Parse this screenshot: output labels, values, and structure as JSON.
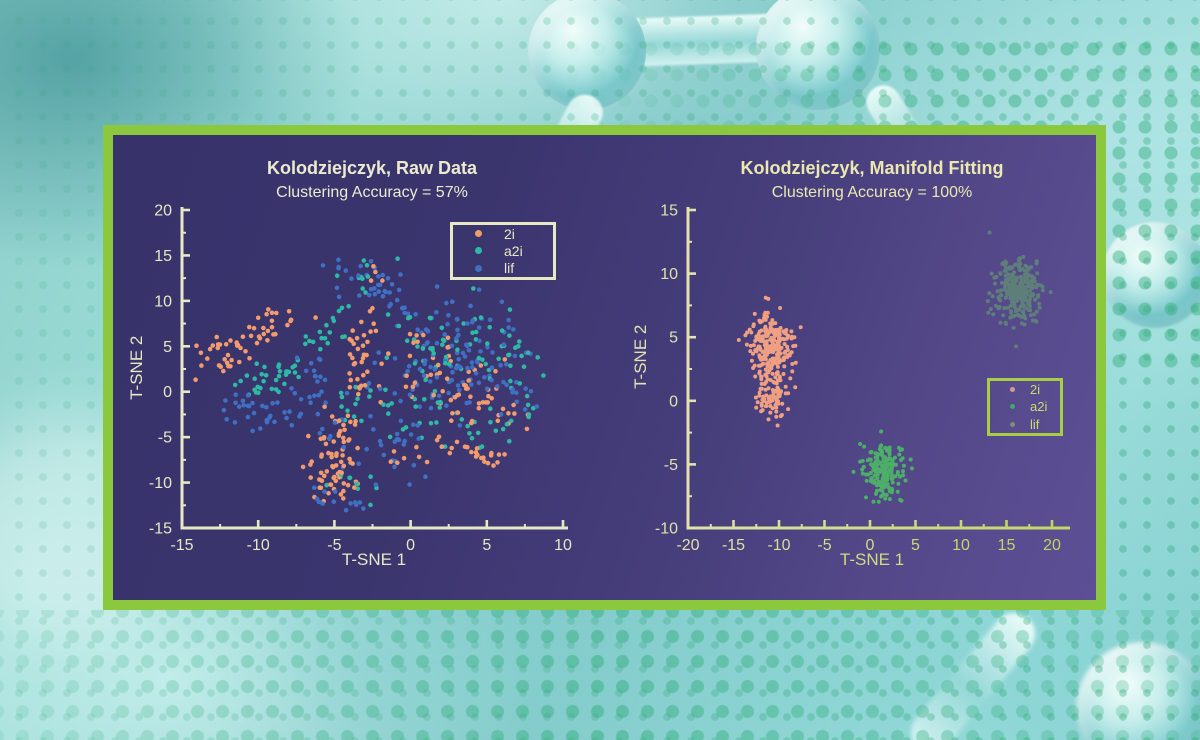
{
  "figure": {
    "frame_color": "#8cc83e",
    "panel_bg_left": "#37326a",
    "panel_bg_right": "#5d4f95",
    "background_theme_color": "#8ad1cf",
    "dot_pattern_color": "#2fa576"
  },
  "chart_data": [
    {
      "type": "scatter",
      "title": "Kolodziejczyk, Raw Data",
      "subtitle": "Clustering Accuracy = 57%",
      "accuracy_value": "57%",
      "xlabel": "T-SNE 1",
      "ylabel": "T-SNE 2",
      "xlim": [
        -15,
        10
      ],
      "ylim": [
        -15,
        20
      ],
      "xticks": [
        -15,
        -10,
        -5,
        0,
        5,
        10
      ],
      "yticks": [
        -15,
        -10,
        -5,
        0,
        5,
        10,
        15,
        20
      ],
      "grid": false,
      "title_color": "#ecebd0",
      "axis_color": "#e7e8c4",
      "tick_label_color_start": "#e7e8c4",
      "tick_label_color_end": "#e7e8c4",
      "xlabel_color": "#e7e8c4",
      "ylabel_color": "#e7e8c4",
      "marker_radius": 2.3,
      "legend": {
        "position": "top-right",
        "border_color": "#e7e8c4",
        "text_color": "#e7e8c4",
        "items": [
          {
            "label": "2i",
            "color": "#f29b6d"
          },
          {
            "label": "a2i",
            "color": "#2eb9a5"
          },
          {
            "label": "lif",
            "color": "#4070c3"
          }
        ]
      },
      "series": [
        {
          "name": "2i",
          "color": "#f29b6d",
          "blobs": [
            [
              -12.2,
              4.0,
              0.9,
              1.2,
              30
            ],
            [
              -9.8,
              6.3,
              0.6,
              0.8,
              12
            ],
            [
              -8.5,
              8.2,
              0.7,
              0.8,
              12
            ],
            [
              -3.3,
              4.3,
              0.45,
              2.6,
              30
            ],
            [
              -4.8,
              -4.5,
              0.7,
              1.3,
              22
            ],
            [
              -5.2,
              -7.5,
              0.8,
              1.5,
              30
            ],
            [
              -4.6,
              -10.3,
              0.7,
              1.2,
              22
            ],
            [
              1.5,
              2.0,
              2.2,
              2.2,
              30
            ],
            [
              4.0,
              0.0,
              1.8,
              1.8,
              22
            ],
            [
              2.0,
              -6.5,
              1.8,
              1.0,
              18
            ],
            [
              5.5,
              -6.8,
              1.3,
              0.6,
              12
            ],
            [
              6.3,
              -2.5,
              0.9,
              1.3,
              10
            ],
            [
              0.0,
              6.5,
              1.5,
              1.2,
              10
            ],
            [
              -2.2,
              13.2,
              0.8,
              0.8,
              4
            ]
          ]
        },
        {
          "name": "a2i",
          "color": "#2eb9a5",
          "blobs": [
            [
              -9.8,
              0.8,
              1.0,
              0.9,
              16
            ],
            [
              -8.2,
              2.6,
              0.9,
              0.9,
              16
            ],
            [
              -6.0,
              5.5,
              0.7,
              1.2,
              10
            ],
            [
              -4.9,
              7.8,
              0.5,
              1.0,
              8
            ],
            [
              -2.9,
              12.9,
              1.1,
              0.9,
              10
            ],
            [
              -3.6,
              -0.5,
              0.7,
              1.6,
              10
            ],
            [
              -3.2,
              -9.8,
              1.2,
              1.2,
              10
            ],
            [
              1.8,
              3.8,
              2.4,
              2.2,
              40
            ],
            [
              0.5,
              -2.8,
              2.0,
              1.4,
              24
            ],
            [
              4.8,
              -4.0,
              1.5,
              1.0,
              14
            ],
            [
              7.3,
              0.8,
              0.6,
              1.8,
              12
            ],
            [
              4.2,
              7.0,
              1.5,
              1.3,
              14
            ],
            [
              6.8,
              4.0,
              0.8,
              1.0,
              8
            ]
          ]
        },
        {
          "name": "lif",
          "color": "#4070c3",
          "blobs": [
            [
              -9.7,
              -2.8,
              1.3,
              1.1,
              24
            ],
            [
              -11.2,
              -1.0,
              0.8,
              0.8,
              8
            ],
            [
              -6.3,
              2.0,
              0.7,
              1.6,
              14
            ],
            [
              -7.3,
              -0.8,
              0.8,
              0.8,
              8
            ],
            [
              -3.1,
              13.3,
              1.2,
              1.0,
              18
            ],
            [
              -1.8,
              11.2,
              1.0,
              0.9,
              12
            ],
            [
              0.5,
              8.8,
              1.6,
              1.3,
              16
            ],
            [
              3.8,
              8.3,
              1.5,
              1.2,
              14
            ],
            [
              2.2,
              4.5,
              2.6,
              2.2,
              45
            ],
            [
              1.0,
              0.5,
              2.2,
              1.6,
              30
            ],
            [
              5.0,
              2.0,
              1.4,
              1.6,
              20
            ],
            [
              6.5,
              -0.5,
              0.9,
              1.2,
              10
            ],
            [
              -1.8,
              -7.8,
              1.5,
              1.2,
              14
            ],
            [
              -0.5,
              -4.5,
              1.5,
              1.2,
              14
            ],
            [
              -5.8,
              -11.8,
              1.0,
              0.6,
              8
            ],
            [
              -3.5,
              -12.3,
              0.8,
              0.5,
              5
            ],
            [
              -5.5,
              -4.8,
              0.8,
              0.9,
              8
            ]
          ]
        }
      ]
    },
    {
      "type": "scatter",
      "title": "Kolodziejczyk, Manifold Fitting",
      "subtitle": "Clustering Accuracy = 100%",
      "accuracy_value": "100%",
      "xlabel": "T-SNE 1",
      "ylabel": "T-SNE 2",
      "xlim": [
        -20,
        22
      ],
      "ylim": [
        -10,
        15
      ],
      "xticks": [
        -20,
        -15,
        -10,
        -5,
        0,
        5,
        10,
        15,
        20
      ],
      "yticks": [
        -10,
        -5,
        0,
        5,
        10,
        15
      ],
      "grid": false,
      "title_color": "#e9e8b0",
      "axis_color": "#e2e3ae",
      "tick_label_color_start": "#e0e2aa",
      "tick_label_color_end": "#bdd65c",
      "xlabel_color": "#cedc82",
      "ylabel_color": "#e2e3ae",
      "marker_radius": 2.0,
      "legend": {
        "position": "middle-right",
        "border_color": "#a9ce45",
        "text_color": "#c9db6d",
        "items": [
          {
            "label": "2i",
            "color": "#d09c90"
          },
          {
            "label": "a2i",
            "color": "#3fa96a"
          },
          {
            "label": "lif",
            "color": "#7e8f71"
          }
        ]
      },
      "series": [
        {
          "name": "2i",
          "color": "#ef9f82",
          "blobs": [
            [
              -11.0,
              4.4,
              1.25,
              1.2,
              240
            ],
            [
              -10.6,
              0.4,
              0.85,
              0.85,
              85
            ]
          ]
        },
        {
          "name": "a2i",
          "color": "#4cae68",
          "blobs": [
            [
              1.6,
              -5.4,
              1.05,
              1.05,
              185
            ]
          ]
        },
        {
          "name": "lif",
          "color": "#5e7f79",
          "blobs": [
            [
              16.2,
              8.6,
              1.35,
              1.15,
              270
            ]
          ]
        }
      ]
    }
  ]
}
